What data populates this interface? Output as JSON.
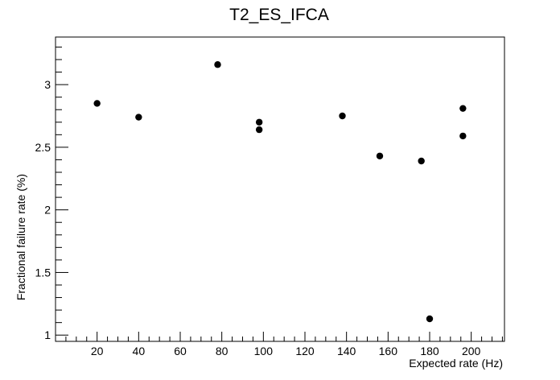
{
  "chart_data": {
    "type": "scatter",
    "title": "T2_ES_IFCA",
    "xlabel": "Expected rate (Hz)",
    "ylabel": "Fractional failure rate (%)",
    "xlim": [
      0,
      216
    ],
    "ylim": [
      0.95,
      3.38
    ],
    "xticks": [
      20,
      40,
      60,
      80,
      100,
      120,
      140,
      160,
      180,
      200
    ],
    "yticks": [
      1,
      1.5,
      2,
      2.5,
      3
    ],
    "ytick_labels": [
      "1",
      "1.5",
      "2",
      "2.5",
      "3"
    ],
    "grid": false,
    "marker_color": "#000000",
    "points": [
      {
        "x": 20,
        "y": 2.85
      },
      {
        "x": 40,
        "y": 2.74
      },
      {
        "x": 78,
        "y": 3.16
      },
      {
        "x": 98,
        "y": 2.7
      },
      {
        "x": 98,
        "y": 2.64
      },
      {
        "x": 138,
        "y": 2.75
      },
      {
        "x": 156,
        "y": 2.43
      },
      {
        "x": 176,
        "y": 2.39
      },
      {
        "x": 180,
        "y": 1.13
      },
      {
        "x": 196,
        "y": 2.81
      },
      {
        "x": 196,
        "y": 2.59
      }
    ]
  }
}
